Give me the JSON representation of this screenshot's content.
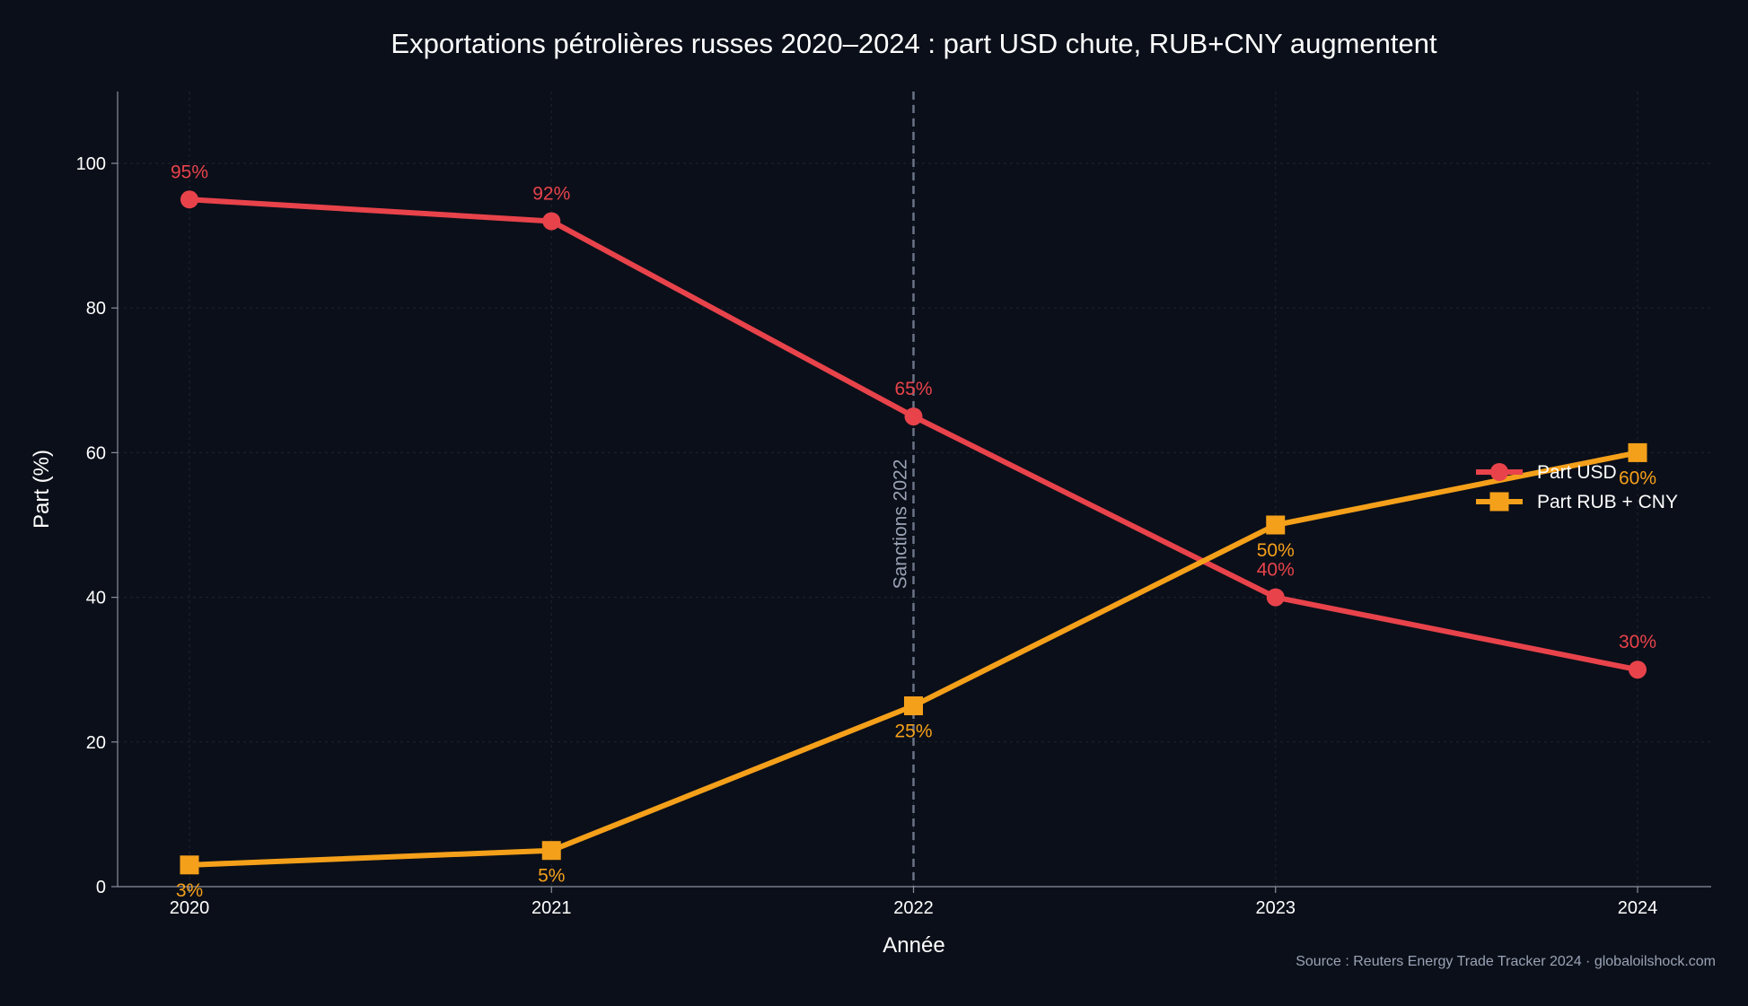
{
  "chart_data": {
    "type": "line",
    "title": "Exportations pétrolières russes 2020–2024 : part USD chute, RUB+CNY augmentent",
    "xlabel": "Année",
    "ylabel": "Part (%)",
    "x": [
      2020,
      2021,
      2022,
      2023,
      2024
    ],
    "x_tick_labels": [
      "2020",
      "2021",
      "2022",
      "2023",
      "2024"
    ],
    "ylim": [
      0,
      110
    ],
    "y_ticks": [
      0,
      20,
      40,
      60,
      80,
      100
    ],
    "y_tick_labels": [
      "0",
      "20",
      "40",
      "60",
      "80",
      "100"
    ],
    "grid": true,
    "legend_position": "right",
    "series": [
      {
        "name": "Part USD",
        "values": [
          95,
          92,
          65,
          40,
          30
        ],
        "data_labels": [
          "95%",
          "92%",
          "65%",
          "40%",
          "30%"
        ],
        "color": "#e8434b",
        "marker": "circle",
        "label_position": "above"
      },
      {
        "name": "Part RUB + CNY",
        "values": [
          3,
          5,
          25,
          50,
          60
        ],
        "data_labels": [
          "3%",
          "5%",
          "25%",
          "50%",
          "60%"
        ],
        "color": "#f5a01a",
        "marker": "square",
        "label_position": "below"
      }
    ],
    "annotations": [
      {
        "x": 2022,
        "label": "Sanctions 2022",
        "style": "dashed-vertical",
        "color": "#9aa3b5"
      }
    ],
    "source": "Source : Reuters Energy Trade Tracker 2024 · globaloilshock.com"
  },
  "colors": {
    "background": "#0b0f19",
    "text": "#ffffff",
    "grid": "#1e2433",
    "axis": "#8a90a0",
    "source_text": "#9aa3b5"
  }
}
